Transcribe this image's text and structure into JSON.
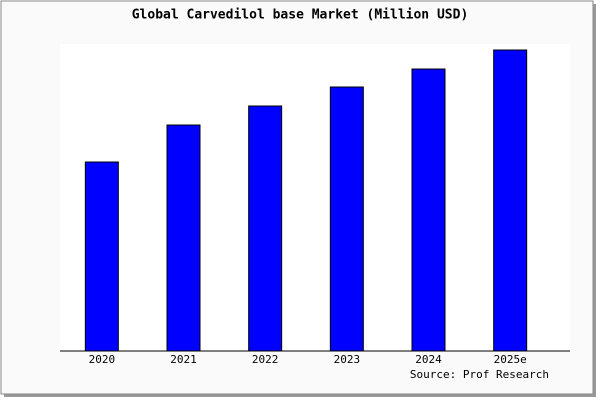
{
  "chart_data": {
    "type": "bar",
    "title": "Global Carvedilol base Market (Million USD)",
    "categories": [
      "2020",
      "2021",
      "2022",
      "2023",
      "2024",
      "2025e"
    ],
    "values": [
      189,
      226,
      245,
      264,
      282,
      301
    ],
    "color": "#0000ff",
    "ylim": [
      0,
      306
    ],
    "source": "Source: Prof Research"
  }
}
